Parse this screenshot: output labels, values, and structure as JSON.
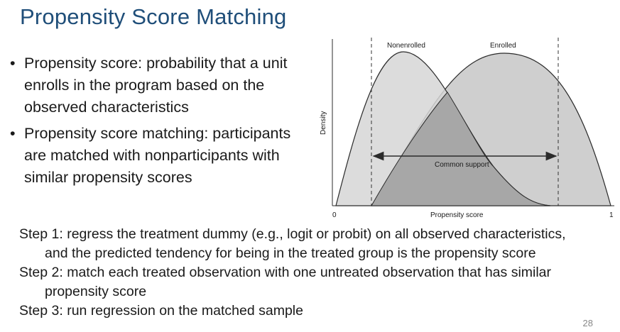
{
  "slide": {
    "title": "Propensity Score Matching",
    "page_number": "28"
  },
  "bullets": [
    {
      "line1": "Propensity score: probability that a unit",
      "line2": "enrolls in the program based on the",
      "line3": "observed characteristics"
    },
    {
      "line1": "Propensity score matching: participants",
      "line2": "are matched with nonparticipants with",
      "line3": "similar propensity scores"
    }
  ],
  "steps": [
    {
      "main": "Step 1: regress the treatment dummy (e.g., logit or probit) on all observed characteristics,",
      "cont": "and the predicted tendency for being in the treated group is the propensity score"
    },
    {
      "main": "Step 2: match each treated observation with one untreated observation that has similar",
      "cont": "propensity score"
    },
    {
      "main": "Step 3: run regression on the matched sample",
      "cont": ""
    }
  ],
  "figure": {
    "label_nonenrolled": "Nonenrolled",
    "label_enrolled": "Enrolled",
    "label_common_support": "Common support",
    "ylabel": "Density",
    "xlabel": "Propensity score",
    "x_min_label": "0",
    "x_max_label": "1",
    "colors": {
      "nonenrolled_fill": "#d6d6d6",
      "enrolled_fill": "#cfcfcf",
      "overlap_fill": "#a7a7a7",
      "outline": "#2b2b2b"
    }
  }
}
